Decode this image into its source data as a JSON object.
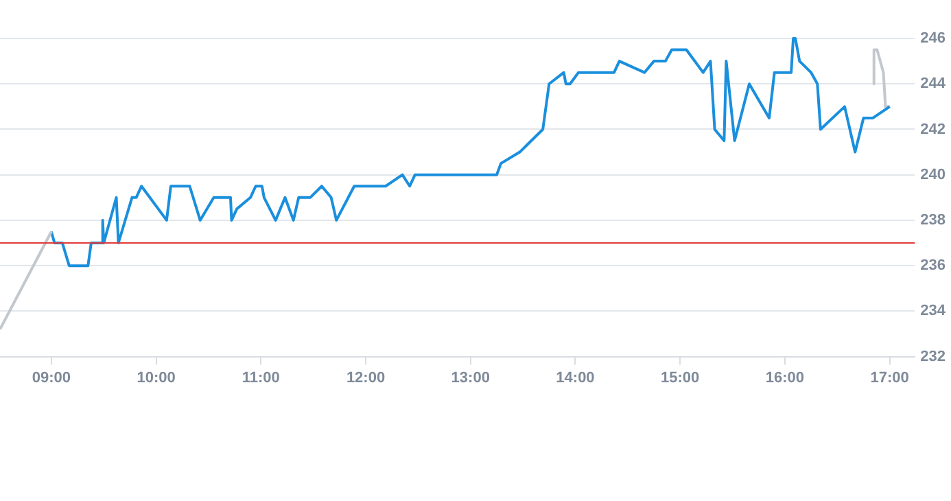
{
  "chart_data": {
    "type": "line",
    "xlim": [
      8.51,
      17.24
    ],
    "xticks": [
      {
        "value": 9,
        "label": "09:00"
      },
      {
        "value": 10,
        "label": "10:00"
      },
      {
        "value": 11,
        "label": "11:00"
      },
      {
        "value": 12,
        "label": "12:00"
      },
      {
        "value": 13,
        "label": "13:00"
      },
      {
        "value": 14,
        "label": "14:00"
      },
      {
        "value": 15,
        "label": "15:00"
      },
      {
        "value": 16,
        "label": "16:00"
      },
      {
        "value": 17,
        "label": "17:00"
      }
    ],
    "ylim": [
      232,
      246
    ],
    "yticks": [
      232,
      234,
      236,
      238,
      240,
      242,
      244,
      246
    ],
    "grid": "y",
    "legend": false,
    "marker": "none",
    "line_style": "solid",
    "ref_lines": [
      {
        "axis": "y",
        "value": 237,
        "color": "#e03a3a"
      }
    ],
    "series": [
      {
        "color": "#c3c7ce",
        "x": [
          8.51,
          9.0
        ],
        "values": [
          233.2,
          237.5
        ]
      },
      {
        "color": "#1a8fdd",
        "x": [
          9.0,
          9.03,
          9.105,
          9.17,
          9.35,
          9.38,
          9.48,
          9.49,
          9.5,
          9.62,
          9.64,
          9.77,
          9.81,
          9.86,
          10.1,
          10.14,
          10.32,
          10.42,
          10.55,
          10.71,
          10.72,
          10.77,
          10.9,
          10.95,
          11.01,
          11.03,
          11.14,
          11.23,
          11.31,
          11.36,
          11.47,
          11.58,
          11.67,
          11.72,
          11.89,
          12.19,
          12.35,
          12.42,
          12.47,
          13.25,
          13.29,
          13.47,
          13.69,
          13.75,
          13.89,
          13.91,
          13.95,
          14.03,
          14.37,
          14.42,
          14.66,
          14.75,
          14.86,
          14.92,
          15.06,
          15.22,
          15.29,
          15.33,
          15.42,
          15.44,
          15.52,
          15.66,
          15.85,
          15.9,
          16.06,
          16.08,
          16.1,
          16.14,
          16.25,
          16.31,
          16.34,
          16.57,
          16.67,
          16.75,
          16.84,
          17.0
        ],
        "values": [
          237.5,
          237,
          237,
          236,
          236,
          237,
          237,
          238,
          237,
          239,
          237,
          239,
          239,
          239.5,
          238,
          239.5,
          239.5,
          238,
          239,
          239,
          238,
          238.5,
          239,
          239.5,
          239.5,
          239,
          238,
          239,
          238,
          239,
          239,
          239.5,
          239,
          238,
          239.5,
          239.5,
          240,
          239.5,
          240,
          240,
          240.5,
          241,
          242,
          244,
          244.5,
          244,
          244,
          244.5,
          244.5,
          245,
          244.5,
          245,
          245,
          245.5,
          245.5,
          244.5,
          245,
          242,
          241.5,
          245,
          241.5,
          244,
          242.5,
          244.5,
          244.5,
          246,
          246,
          245,
          244.5,
          244,
          242,
          243,
          241,
          242.5,
          242.5,
          243
        ]
      },
      {
        "color": "#c3c7ce",
        "x": [
          16.84,
          16.85,
          16.88,
          16.94,
          16.96,
          17.0
        ],
        "values": [
          244,
          245.5,
          245.5,
          244.5,
          243,
          243
        ]
      }
    ]
  }
}
